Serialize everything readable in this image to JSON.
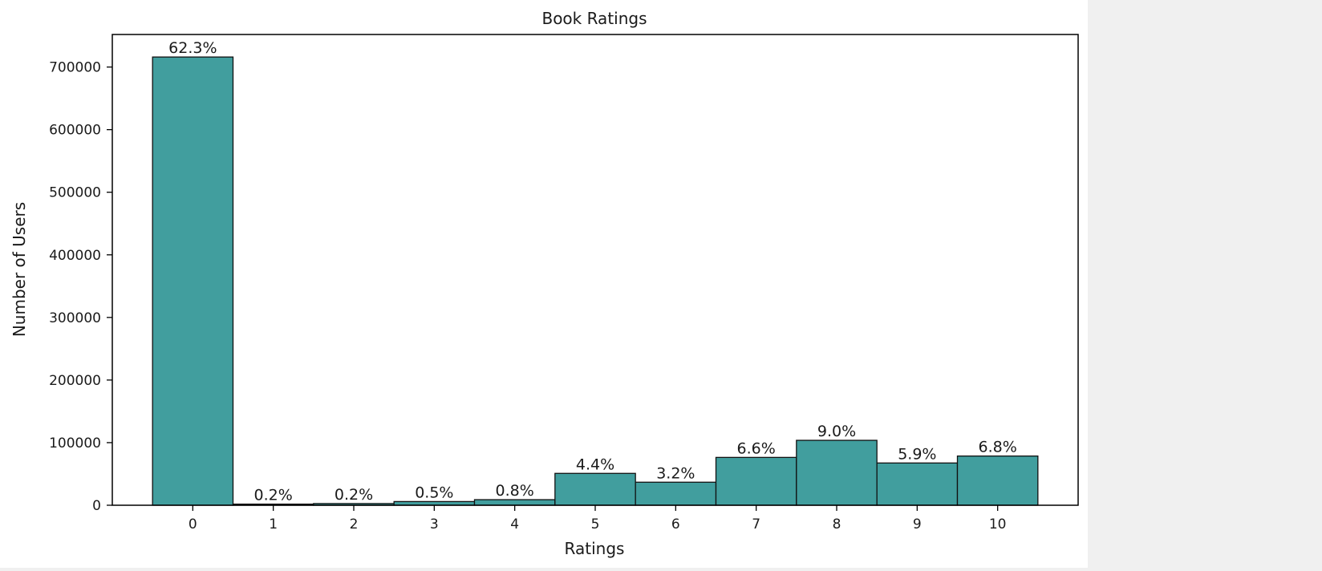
{
  "chart_data": {
    "type": "bar",
    "title": "Book Ratings",
    "xlabel": "Ratings",
    "ylabel": "Number of Users",
    "categories": [
      "0",
      "1",
      "2",
      "3",
      "4",
      "5",
      "6",
      "7",
      "8",
      "9",
      "10"
    ],
    "values": [
      716000,
      1800,
      2700,
      5900,
      8900,
      50900,
      36800,
      76400,
      103700,
      67500,
      78600
    ],
    "bar_labels": [
      "62.3%",
      "0.2%",
      "0.2%",
      "0.5%",
      "0.8%",
      "4.4%",
      "3.2%",
      "6.6%",
      "9.0%",
      "5.9%",
      "6.8%"
    ],
    "ylim": [
      0,
      752000
    ],
    "xlim": [
      -1.0,
      11.0
    ],
    "yticks": [
      0,
      100000,
      200000,
      300000,
      400000,
      500000,
      600000,
      700000
    ],
    "grid": false,
    "legend": "none",
    "colors": {
      "bar_fill": "#419e9e",
      "bar_edge": "#111111",
      "axes": "#000000"
    }
  }
}
